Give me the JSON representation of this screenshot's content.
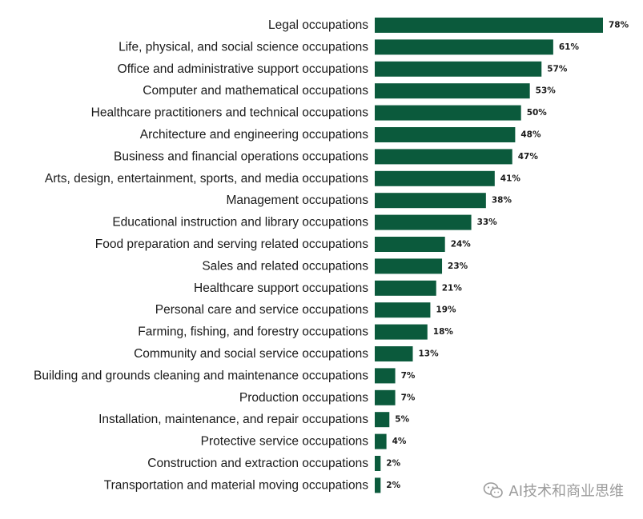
{
  "chart_data": {
    "type": "bar",
    "orientation": "horizontal",
    "categories": [
      "Legal occupations",
      "Life, physical, and social science occupations",
      "Office and administrative support occupations",
      "Computer and mathematical occupations",
      "Healthcare practitioners and technical occupations",
      "Architecture and engineering occupations",
      "Business and financial operations occupations",
      "Arts, design, entertainment, sports, and media occupations",
      "Management occupations",
      "Educational instruction and library occupations",
      "Food preparation and serving related occupations",
      "Sales and related occupations",
      "Healthcare support occupations",
      "Personal care and service occupations",
      "Farming, fishing, and forestry occupations",
      "Community and social service occupations",
      "Building and grounds cleaning and maintenance occupations",
      "Production occupations",
      "Installation, maintenance, and repair occupations",
      "Protective service occupations",
      "Construction and extraction occupations",
      "Transportation and material moving occupations"
    ],
    "values": [
      78,
      61,
      57,
      53,
      50,
      48,
      47,
      41,
      38,
      33,
      24,
      23,
      21,
      19,
      18,
      13,
      7,
      7,
      5,
      4,
      2,
      2
    ],
    "value_labels": [
      "78%",
      "61%",
      "57%",
      "53%",
      "50%",
      "48%",
      "47%",
      "41%",
      "38%",
      "33%",
      "24%",
      "23%",
      "21%",
      "19%",
      "18%",
      "13%",
      "7%",
      "7%",
      "5%",
      "4%",
      "2%",
      "2%"
    ],
    "xlim": [
      0,
      78
    ],
    "grid": false,
    "legend": "none",
    "bar_color": "#0b5a3c"
  },
  "watermark": {
    "text": "AI技术和商业思维",
    "icon": "wechat-icon"
  }
}
